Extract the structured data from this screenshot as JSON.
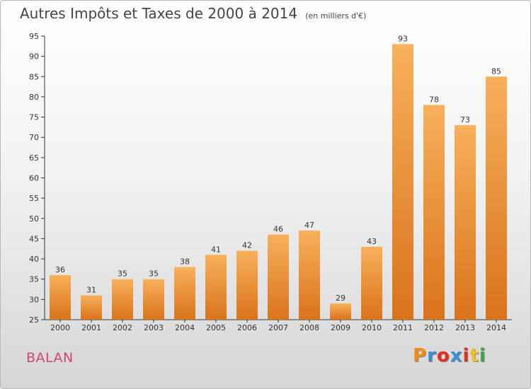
{
  "header": {
    "title": "Autres Impôts et Taxes de 2000 à 2014",
    "unit": "(en milliers d'€)"
  },
  "footer": {
    "commune": "BALAN",
    "logo_text": "Proxiti",
    "logo_colors": [
      "#f28a1a",
      "#3b8ed6",
      "#e0301e",
      "#3b8ed6",
      "#e0301e",
      "#f2c21a",
      "#3aa64a"
    ]
  },
  "colors": {
    "bar_light": "#f8b05a",
    "bar_dark": "#d9731c",
    "axis": "#333333",
    "grid": "#cccccc"
  },
  "chart_data": {
    "type": "bar",
    "title": "Autres Impôts et Taxes de 2000 à 2014",
    "subtitle": "(en milliers d'€)",
    "xlabel": "",
    "ylabel": "",
    "categories": [
      "2000",
      "2001",
      "2002",
      "2003",
      "2004",
      "2005",
      "2006",
      "2007",
      "2008",
      "2009",
      "2010",
      "2011",
      "2012",
      "2013",
      "2014"
    ],
    "values": [
      36,
      31,
      35,
      35,
      38,
      41,
      42,
      46,
      47,
      29,
      43,
      93,
      78,
      73,
      85
    ],
    "ylim": [
      25,
      95
    ],
    "yticks": [
      25,
      30,
      35,
      40,
      45,
      50,
      55,
      60,
      65,
      70,
      75,
      80,
      85,
      90,
      95
    ],
    "grid": false,
    "legend": "none"
  }
}
